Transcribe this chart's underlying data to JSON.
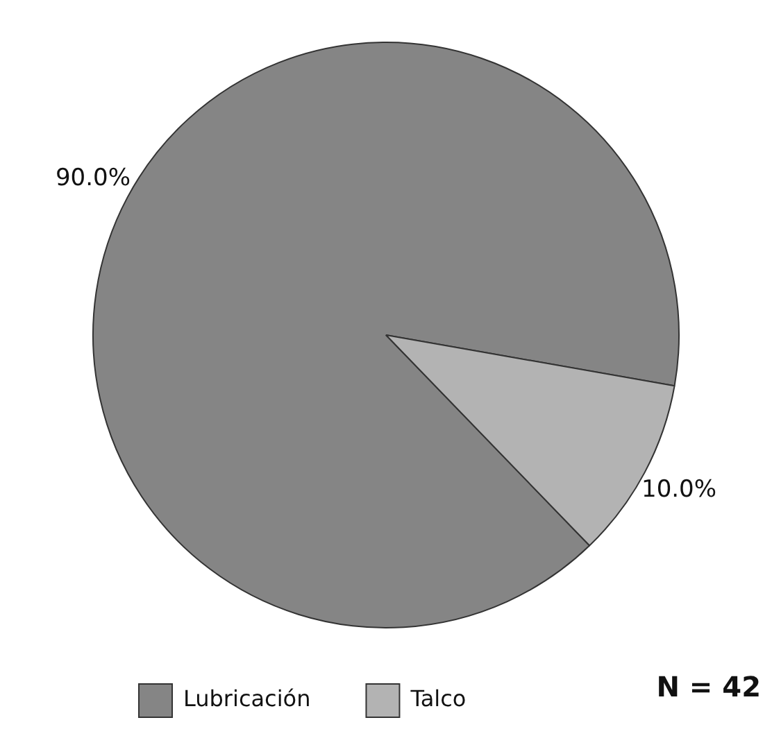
{
  "chart_data": {
    "type": "pie",
    "categories": [
      "Lubricación",
      "Talco"
    ],
    "values": [
      90,
      10
    ],
    "colors": [
      "#858585",
      "#b3b3b3"
    ],
    "value_labels": [
      "90.0%",
      "10.0%"
    ],
    "legend": "bottom",
    "annotations": [
      "N = 42"
    ]
  }
}
